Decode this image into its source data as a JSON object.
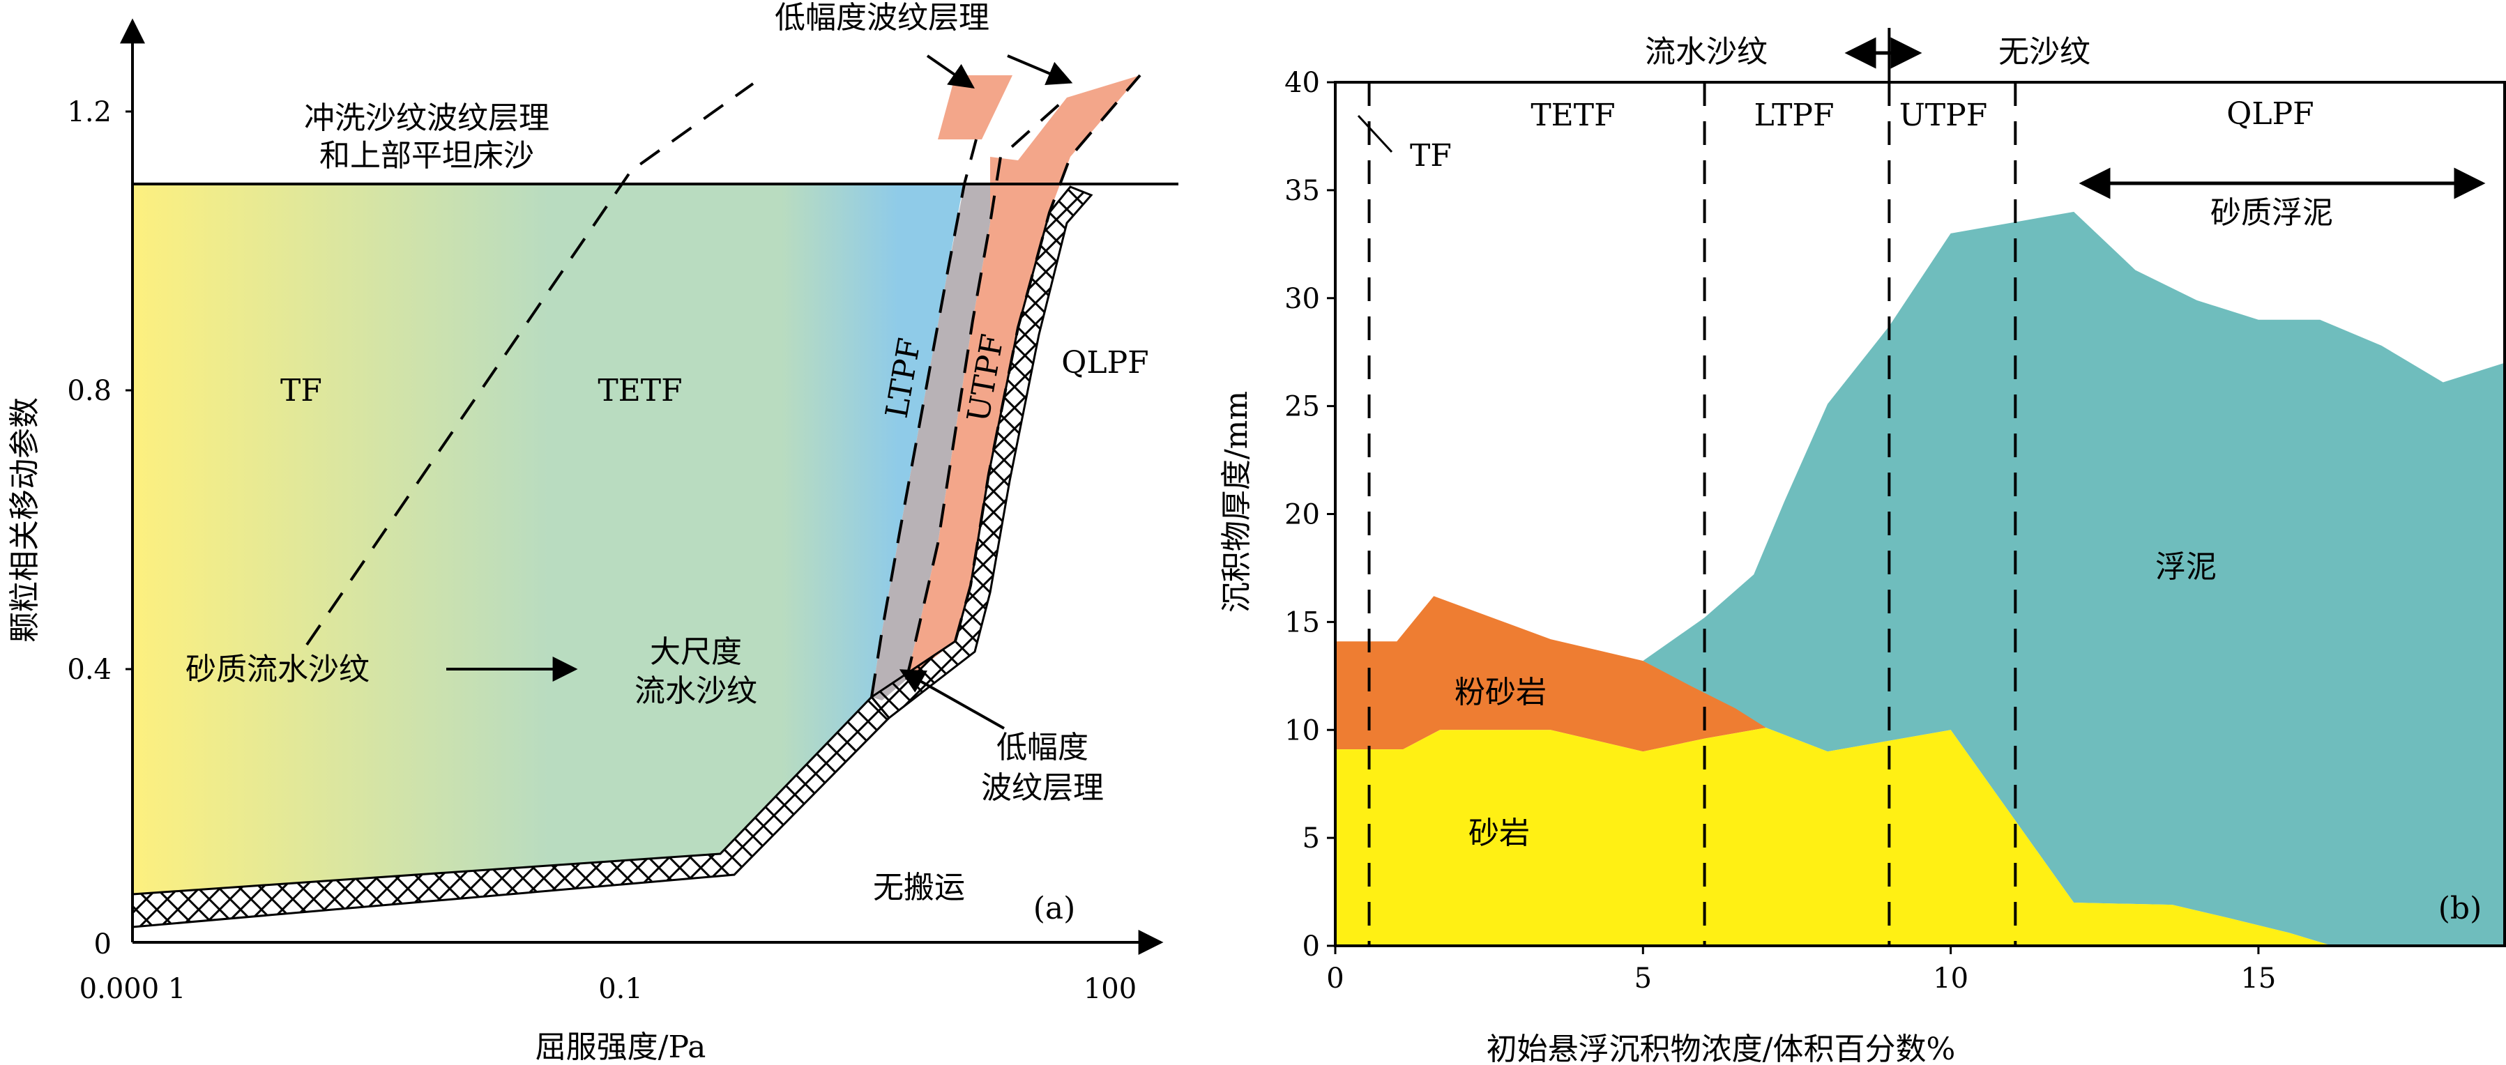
{
  "panel_a": {
    "panel_label": "(a)",
    "xlabel": "屈服强度/Pa",
    "ylabel": "颗粒相关移动参数",
    "x_ticks": [
      "0.000 1",
      "0.1",
      "100"
    ],
    "y_ticks": [
      "0",
      "0.4",
      "0.8",
      "1.2"
    ],
    "regions": {
      "TF": "TF",
      "TETF": "TETF",
      "LTPF": "LTPF",
      "UTPF": "UTPF",
      "QLPF": "QLPF"
    },
    "annotations": {
      "top_zone_line1": "冲洗沙纹波纹层理",
      "top_zone_line2": "和上部平坦床沙",
      "sandy_ripple": "砂质流水沙纹",
      "large_ripple_line1": "大尺度",
      "large_ripple_line2": "流水沙纹",
      "low_amp_top": "低幅度波纹层理",
      "low_amp_line1": "低幅度",
      "low_amp_line2": "波纹层理",
      "no_transport": "无搬运"
    },
    "colors": {
      "gradient_left": "#fdf07f",
      "gradient_mid": "#b9dcc0",
      "gradient_right": "#8fcbe8",
      "ltpf_gray": "#b8b2b6",
      "salmon": "#f3a68a"
    }
  },
  "chart_data": [
    {
      "type": "area",
      "panel": "b",
      "panel_label": "(b)",
      "xlabel": "初始悬浮沉积物浓度/体积百分数%",
      "ylabel": "沉积物厚度/mm",
      "xlim": [
        0,
        19
      ],
      "ylim": [
        0,
        40
      ],
      "x_ticks": [
        "0",
        "5",
        "10",
        "15"
      ],
      "y_ticks": [
        "0",
        "5",
        "10",
        "15",
        "20",
        "25",
        "30",
        "35",
        "40"
      ],
      "series": [
        {
          "name": "砂岩",
          "color": "#fff014",
          "points": [
            [
              0,
              9.1
            ],
            [
              1.1,
              9.1
            ],
            [
              1.7,
              10
            ],
            [
              3.5,
              10
            ],
            [
              5,
              9
            ],
            [
              6,
              9.6
            ],
            [
              7,
              10.1
            ],
            [
              8,
              9
            ],
            [
              9,
              9.5
            ],
            [
              10,
              10
            ],
            [
              11,
              6
            ],
            [
              12,
              2
            ],
            [
              13.6,
              1.9
            ],
            [
              14.5,
              1.3
            ],
            [
              15.5,
              0.6
            ],
            [
              16.2,
              0
            ]
          ]
        },
        {
          "name": "粉砂岩",
          "color": "#ee7d32",
          "points": [
            [
              0,
              14.1
            ],
            [
              1,
              14.1
            ],
            [
              1.6,
              16.2
            ],
            [
              3.5,
              14.2
            ],
            [
              5,
              13.2
            ],
            [
              5.8,
              12
            ],
            [
              6.5,
              11
            ],
            [
              7,
              10.1
            ]
          ]
        },
        {
          "name": "浮泥",
          "color": "#6fbdbd",
          "points": [
            [
              5,
              13.2
            ],
            [
              6,
              15.2
            ],
            [
              6.8,
              17.2
            ],
            [
              7.3,
              20.6
            ],
            [
              8,
              25.1
            ],
            [
              9,
              28.7
            ],
            [
              10,
              33
            ],
            [
              11,
              33.5
            ],
            [
              12,
              34
            ],
            [
              13,
              31.3
            ],
            [
              14,
              29.9
            ],
            [
              15,
              29
            ],
            [
              16,
              29
            ],
            [
              17,
              27.8
            ],
            [
              18,
              26.1
            ],
            [
              19,
              27
            ]
          ]
        }
      ],
      "boundaries_x": [
        0.55,
        6,
        9,
        11.05
      ],
      "zones": [
        "TF",
        "TETF",
        "LTPF",
        "UTPF",
        "QLPF"
      ],
      "top_labels": {
        "left": "流水沙纹",
        "right": "无沙纹"
      },
      "bracket_label": "砂质浮泥",
      "area_labels": {
        "mud": "浮泥",
        "siltstone": "粉砂岩",
        "sandstone": "砂岩"
      }
    }
  ]
}
